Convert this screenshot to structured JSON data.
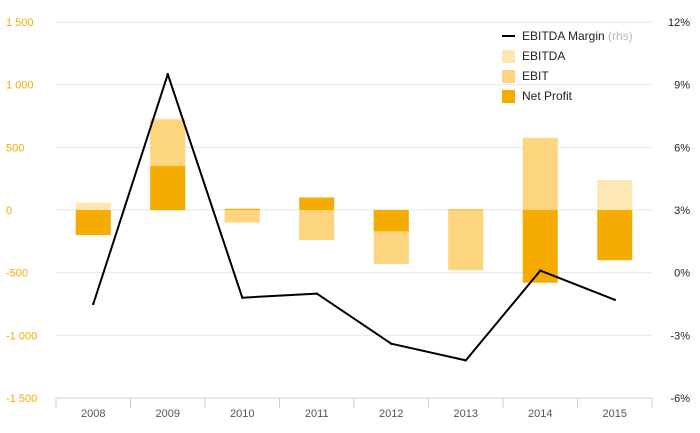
{
  "chart_data": {
    "type": "bar",
    "title": "",
    "xlabel": "",
    "ylabel": "",
    "categories": [
      "2008",
      "2009",
      "2010",
      "2011",
      "2012",
      "2013",
      "2014",
      "2015"
    ],
    "series": [
      {
        "name": "EBITDA",
        "type": "bar",
        "axis": "left",
        "color": "#fde7b4",
        "values": [
          60,
          730,
          -100,
          -240,
          -430,
          -480,
          580,
          240
        ]
      },
      {
        "name": "EBIT",
        "type": "bar",
        "axis": "left",
        "color": "#fdd57e",
        "values": [
          -30,
          720,
          -100,
          -240,
          -430,
          -480,
          570,
          -30
        ]
      },
      {
        "name": "Net Profit",
        "type": "bar",
        "axis": "left",
        "color": "#f5ab00",
        "values": [
          -200,
          350,
          10,
          100,
          -170,
          5,
          -580,
          -400
        ]
      },
      {
        "name": "EBITDA Margin",
        "name_suffix": "(rhs)",
        "type": "line",
        "axis": "right",
        "color": "#000000",
        "values": [
          -1.5,
          9.5,
          -1.2,
          -1.0,
          -3.4,
          -4.2,
          0.1,
          -1.3
        ]
      }
    ],
    "y_left": {
      "ylim": [
        -1500,
        1500
      ],
      "ticks": [
        1500,
        1000,
        500,
        0,
        -500,
        -1000,
        -1500
      ],
      "tick_labels": [
        "1 500",
        "1 000",
        "500",
        "0",
        "-500",
        "-1 000",
        "-1 500"
      ],
      "color": "#f0ab00"
    },
    "y_right": {
      "ylim": [
        -6,
        12
      ],
      "ticks": [
        12,
        9,
        6,
        3,
        0,
        -3,
        -6
      ],
      "tick_labels": [
        "12%",
        "9%",
        "6%",
        "3%",
        "0%",
        "-3%",
        "-6%"
      ]
    },
    "grid": true,
    "legend_position": "top-right"
  }
}
